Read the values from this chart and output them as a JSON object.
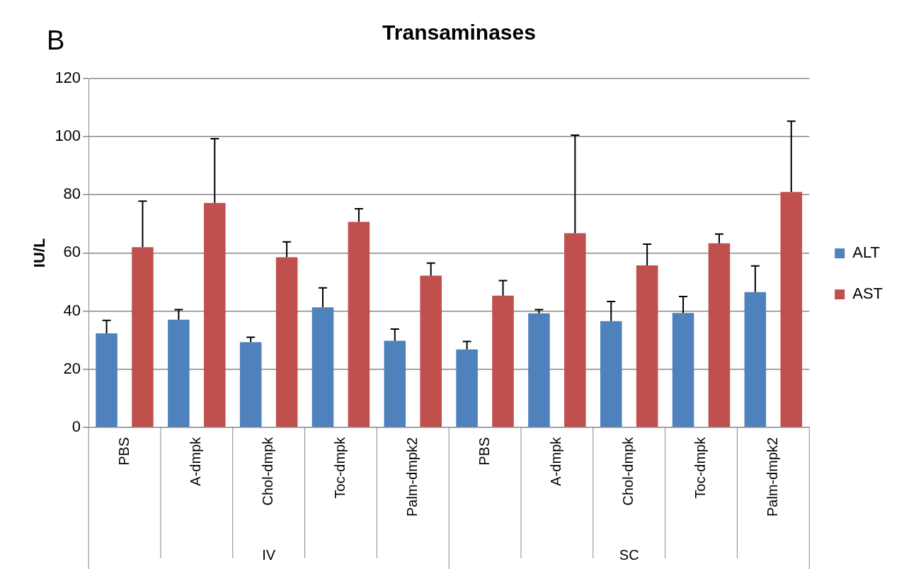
{
  "chart_data": {
    "type": "bar",
    "title": "Transaminases",
    "ylabel": "IU/L",
    "categories": [
      "PBS",
      "A-dmpk",
      "Chol-dmpk",
      "Toc-dmpk",
      "Palm-dmpk2",
      "PBS",
      "A-dmpk",
      "Chol-dmpk",
      "Toc-dmpk",
      "Palm-dmpk2"
    ],
    "series": [
      {
        "name": "ALT",
        "color": "#4f81bd",
        "values": [
          32.3,
          37,
          29.3,
          41.3,
          29.8,
          26.8,
          39.2,
          36.5,
          39.3,
          46.5
        ],
        "errors": [
          [
            32.3,
            36.8
          ],
          [
            37,
            40.5
          ],
          [
            29.3,
            31
          ],
          [
            41.3,
            48
          ],
          [
            29.8,
            33.8
          ],
          [
            26.8,
            29.5
          ],
          [
            39.2,
            40.5
          ],
          [
            36.5,
            43.3
          ],
          [
            39.3,
            45
          ],
          [
            46.5,
            55.5
          ]
        ]
      },
      {
        "name": "AST",
        "color": "#c0504d",
        "values": [
          62,
          77.2,
          58.5,
          70.7,
          52.2,
          45.3,
          66.8,
          55.7,
          63.3,
          81
        ],
        "errors": [
          [
            62,
            77.8
          ],
          [
            77.2,
            99.3
          ],
          [
            58.5,
            63.8
          ],
          [
            70.7,
            75.2
          ],
          [
            52.2,
            56.5
          ],
          [
            45.3,
            50.5
          ],
          [
            66.8,
            100.5
          ],
          [
            55.7,
            63
          ],
          [
            63.3,
            66.5
          ],
          [
            81,
            105.3
          ]
        ]
      }
    ],
    "ylim": [
      0,
      120
    ],
    "yticks": [
      0,
      20,
      40,
      60,
      80,
      100,
      120
    ],
    "grid": "y",
    "legend": "right",
    "annotations": [
      "B",
      "IV",
      "SC"
    ]
  }
}
